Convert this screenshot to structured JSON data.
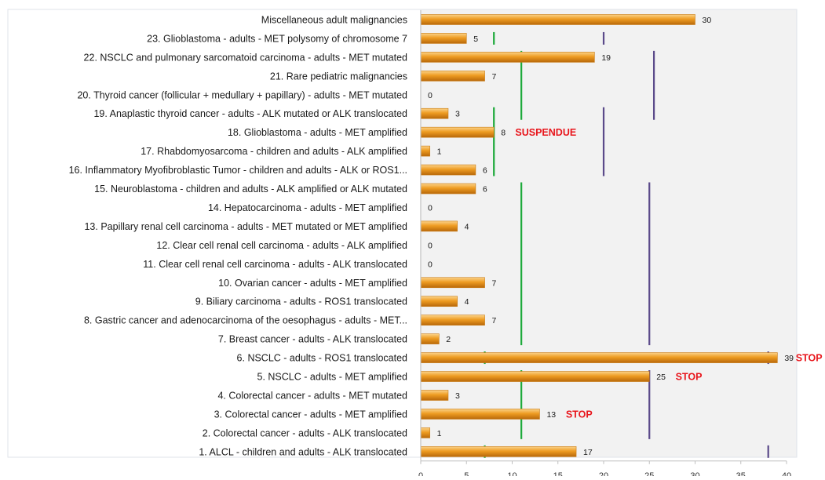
{
  "chart_data": {
    "type": "bar",
    "orientation": "horizontal",
    "xlim": [
      0,
      40
    ],
    "xticks": [
      0,
      5,
      10,
      15,
      20,
      25,
      30,
      35,
      40
    ],
    "grid": false,
    "colors": {
      "bar": "#ed9a1c",
      "threshold_green": "#1faa3c",
      "threshold_purple": "#5b4a8a",
      "annotation": "#e8161c",
      "background": "#f2f2f2"
    },
    "categories": [
      "Miscellaneous adult malignancies",
      "23. Glioblastoma - adults - MET polysomy of chromosome 7",
      "22. NSCLC and pulmonary sarcomatoid carcinoma - adults - MET mutated",
      "21. Rare pediatric malignancies",
      "20. Thyroid cancer (follicular + medullary + papillary) - adults - MET mutated",
      "19. Anaplastic thyroid cancer - adults - ALK mutated or ALK translocated",
      "18. Glioblastoma - adults - MET amplified",
      "17. Rhabdomyosarcoma - children and adults - ALK amplified",
      "16. Inflammatory Myofibroblastic Tumor - children and adults - ALK or ROS1...",
      "15. Neuroblastoma - children and adults - ALK amplified or ALK mutated",
      "14. Hepatocarcinoma - adults - MET amplified",
      "13. Papillary renal cell carcinoma - adults - MET mutated or MET amplified",
      "12. Clear cell renal cell carcinoma - adults - ALK amplified",
      "11. Clear cell renal cell carcinoma - adults - ALK translocated",
      "10. Ovarian cancer - adults - MET amplified",
      "9. Biliary carcinoma - adults - ROS1 translocated",
      "8. Gastric cancer and adenocarcinoma of the oesophagus - adults - MET...",
      "7. Breast cancer - adults - ALK translocated",
      "6. NSCLC - adults - ROS1 translocated",
      "5. NSCLC - adults - MET amplified",
      "4. Colorectal cancer - adults - MET mutated",
      "3. Colorectal cancer - adults - MET amplified",
      "2. Colorectal cancer - adults - ALK translocated",
      "1. ALCL - children and adults - ALK translocated"
    ],
    "values": [
      30,
      5,
      19,
      7,
      0,
      3,
      8,
      1,
      6,
      6,
      0,
      4,
      0,
      0,
      7,
      4,
      7,
      2,
      39,
      25,
      3,
      13,
      1,
      17
    ],
    "value_labels": [
      "30",
      "5",
      "19",
      "7",
      "0",
      "3",
      "8",
      "1",
      "6",
      "6",
      "0",
      "4",
      "0",
      "0",
      "7",
      "4",
      "7",
      "2",
      "39",
      "25",
      "3",
      "13",
      "1",
      "17"
    ],
    "annotations": [
      {
        "category_index": 6,
        "text": "SUSPENDUE"
      },
      {
        "category_index": 18,
        "text": "STOP"
      },
      {
        "category_index": 19,
        "text": "STOP"
      },
      {
        "category_index": 21,
        "text": "STOP"
      }
    ],
    "threshold_lines": [
      {
        "color": "green",
        "x": 8,
        "from_index": 1,
        "to_index": 1
      },
      {
        "color": "purple",
        "x": 20,
        "from_index": 1,
        "to_index": 1
      },
      {
        "color": "green",
        "x": 11,
        "from_index": 2,
        "to_index": 5
      },
      {
        "color": "purple",
        "x": 25.5,
        "from_index": 2,
        "to_index": 5
      },
      {
        "color": "green",
        "x": 8,
        "from_index": 5,
        "to_index": 8
      },
      {
        "color": "purple",
        "x": 20,
        "from_index": 5,
        "to_index": 8
      },
      {
        "color": "green",
        "x": 11,
        "from_index": 9,
        "to_index": 17
      },
      {
        "color": "purple",
        "x": 25,
        "from_index": 9,
        "to_index": 17
      },
      {
        "color": "green",
        "x": 7,
        "from_index": 18,
        "to_index": 18
      },
      {
        "color": "purple",
        "x": 38,
        "from_index": 18,
        "to_index": 18
      },
      {
        "color": "green",
        "x": 11,
        "from_index": 19,
        "to_index": 22
      },
      {
        "color": "purple",
        "x": 25,
        "from_index": 19,
        "to_index": 22
      },
      {
        "color": "green",
        "x": 7,
        "from_index": 23,
        "to_index": 23
      },
      {
        "color": "purple",
        "x": 38,
        "from_index": 23,
        "to_index": 23
      }
    ]
  }
}
